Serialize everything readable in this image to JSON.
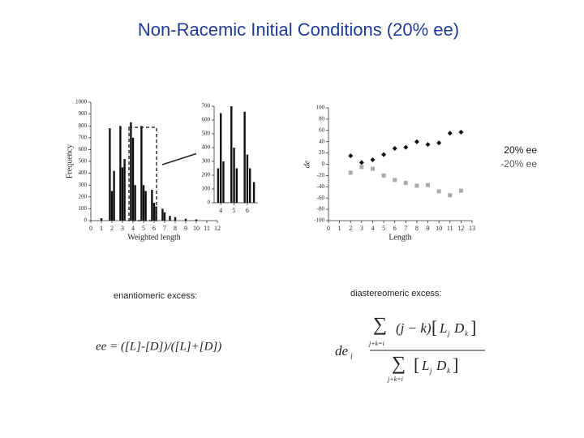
{
  "title": "Non-Racemic Initial Conditions (20% ee)",
  "chart_data": [
    {
      "type": "bar",
      "xlabel": "Weighted length",
      "ylabel": "Frequency",
      "color": "#111111",
      "x": [
        1,
        1.8,
        2,
        2.2,
        2.8,
        3,
        3.2,
        3.8,
        4,
        4.2,
        4.8,
        5,
        5.2,
        5.8,
        6,
        6.2,
        6.8,
        7,
        7.5,
        8,
        9,
        10
      ],
      "values": [
        20,
        780,
        250,
        420,
        800,
        450,
        520,
        830,
        700,
        300,
        800,
        300,
        250,
        260,
        150,
        120,
        100,
        70,
        40,
        30,
        15,
        10
      ],
      "xlim": [
        0,
        12
      ],
      "xticks": [
        0,
        1,
        2,
        3,
        4,
        5,
        6,
        7,
        8,
        9,
        10,
        11,
        12
      ],
      "ylim": [
        0,
        1000
      ],
      "yticks": [
        0,
        100,
        200,
        300,
        400,
        500,
        600,
        700,
        800,
        900,
        1000
      ]
    },
    {
      "type": "bar",
      "color": "#111111",
      "x": [
        3.8,
        4,
        4.2,
        4.8,
        5,
        5.2,
        5.8,
        6,
        6.2,
        6.5
      ],
      "values": [
        250,
        650,
        300,
        700,
        400,
        250,
        660,
        350,
        250,
        150
      ],
      "xlim": [
        3.5,
        6.8
      ],
      "xticks": [
        4,
        5,
        6
      ],
      "ylim": [
        0,
        700
      ],
      "yticks": [
        0,
        100,
        200,
        300,
        400,
        500,
        600,
        700
      ]
    },
    {
      "type": "scatter",
      "xlabel": "Length",
      "ylabel": "de",
      "legend": "right",
      "x": [
        2,
        3,
        4,
        5,
        6,
        7,
        8,
        9,
        10,
        11,
        12
      ],
      "series": [
        {
          "name": "20% ee",
          "color": "#111111",
          "marker": "diamond",
          "values": [
            15,
            3,
            8,
            17,
            28,
            30,
            40,
            35,
            38,
            55,
            57
          ]
        },
        {
          "name": "-20% ee",
          "color": "#aaaaaa",
          "marker": "square",
          "values": [
            -15,
            -5,
            -8,
            -20,
            -28,
            -33,
            -38,
            -37,
            -48,
            -55,
            -47
          ]
        }
      ],
      "xlim": [
        0,
        13
      ],
      "xticks": [
        0,
        1,
        2,
        3,
        4,
        5,
        6,
        7,
        8,
        9,
        10,
        11,
        12,
        13
      ],
      "ylim": [
        -100,
        100
      ],
      "yticks": [
        -100,
        -80,
        -60,
        -40,
        -20,
        0,
        20,
        40,
        60,
        80,
        100
      ]
    }
  ],
  "notes": {
    "ee_label": "enantiomeric excess:",
    "de_label": "diastereomeric excess:",
    "ee_formula": "ee = ([L]-[D])/([L]+[D])",
    "de_formula": {
      "lhs": "de",
      "lhs_sub": "i",
      "sum": "∑",
      "sum_index": "j+k=i",
      "factor": "(j − k)",
      "open": "[",
      "close": "]",
      "L": "L",
      "L_sub": "j",
      "D": "D",
      "D_sub": "k"
    }
  }
}
